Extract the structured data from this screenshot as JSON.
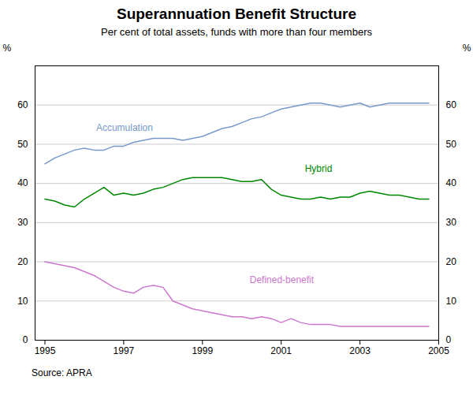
{
  "chart_data": {
    "type": "line",
    "title": "Superannuation Benefit Structure",
    "subtitle": "Per cent of total assets, funds with more than four members",
    "source": "Source: APRA",
    "ylabel": "%",
    "y2label": "%",
    "xlim": [
      1994.75,
      2005.0
    ],
    "xticks": [
      1995,
      1997,
      1999,
      2001,
      2003,
      2005
    ],
    "ylim": [
      0,
      70
    ],
    "yticks": [
      0,
      10,
      20,
      30,
      40,
      50,
      60
    ],
    "y2lim": [
      0,
      70
    ],
    "y2ticks": [
      0,
      10,
      20,
      30,
      40,
      50,
      60
    ],
    "grid": true,
    "x": [
      1995.0,
      1995.25,
      1995.5,
      1995.75,
      1996.0,
      1996.25,
      1996.5,
      1996.75,
      1997.0,
      1997.25,
      1997.5,
      1997.75,
      1998.0,
      1998.25,
      1998.5,
      1998.75,
      1999.0,
      1999.25,
      1999.5,
      1999.75,
      2000.0,
      2000.25,
      2000.5,
      2000.75,
      2001.0,
      2001.25,
      2001.5,
      2001.75,
      2002.0,
      2002.25,
      2002.5,
      2002.75,
      2003.0,
      2003.25,
      2003.5,
      2003.75,
      2004.0,
      2004.25,
      2004.5,
      2004.75
    ],
    "series": [
      {
        "name": "Accumulation",
        "color": "#7799cc",
        "values": [
          45.0,
          46.5,
          47.5,
          48.5,
          49.0,
          48.5,
          48.5,
          49.5,
          49.5,
          50.5,
          51.0,
          51.5,
          51.5,
          51.5,
          51.0,
          51.5,
          52.0,
          53.0,
          54.0,
          54.5,
          55.5,
          56.5,
          57.0,
          58.0,
          59.0,
          59.5,
          60.0,
          60.5,
          60.5,
          60.0,
          59.5,
          60.0,
          60.5,
          59.5,
          60.0,
          60.5,
          60.5,
          60.5,
          60.5,
          60.5
        ]
      },
      {
        "name": "Hybrid",
        "color": "#008800",
        "values": [
          36.0,
          35.5,
          34.5,
          34.0,
          36.0,
          37.5,
          39.0,
          37.0,
          37.5,
          37.0,
          37.5,
          38.5,
          39.0,
          40.0,
          41.0,
          41.5,
          41.5,
          41.5,
          41.5,
          41.0,
          40.5,
          40.5,
          41.0,
          38.5,
          37.0,
          36.5,
          36.0,
          36.0,
          36.5,
          36.0,
          36.5,
          36.5,
          37.5,
          38.0,
          37.5,
          37.0,
          37.0,
          36.5,
          36.0,
          36.0
        ]
      },
      {
        "name": "Defined-benefit",
        "color": "#cc77cc",
        "values": [
          20.0,
          19.5,
          19.0,
          18.5,
          17.5,
          16.5,
          15.0,
          13.5,
          12.5,
          12.0,
          13.5,
          14.0,
          13.5,
          10.0,
          9.0,
          8.0,
          7.5,
          7.0,
          6.5,
          6.0,
          6.0,
          5.5,
          6.0,
          5.5,
          4.5,
          5.5,
          4.5,
          4.0,
          4.0,
          4.0,
          3.5,
          3.5,
          3.5,
          3.5,
          3.5,
          3.5,
          3.5,
          3.5,
          3.5,
          3.5
        ]
      }
    ],
    "annotations": [
      {
        "text": "Accumulation",
        "x": 1996.3,
        "y": 53.5,
        "color": "#7799cc"
      },
      {
        "text": "Hybrid",
        "x": 2001.6,
        "y": 43.0,
        "color": "#008800"
      },
      {
        "text": "Defined-benefit",
        "x": 2000.2,
        "y": 14.5,
        "color": "#cc77cc"
      }
    ]
  }
}
